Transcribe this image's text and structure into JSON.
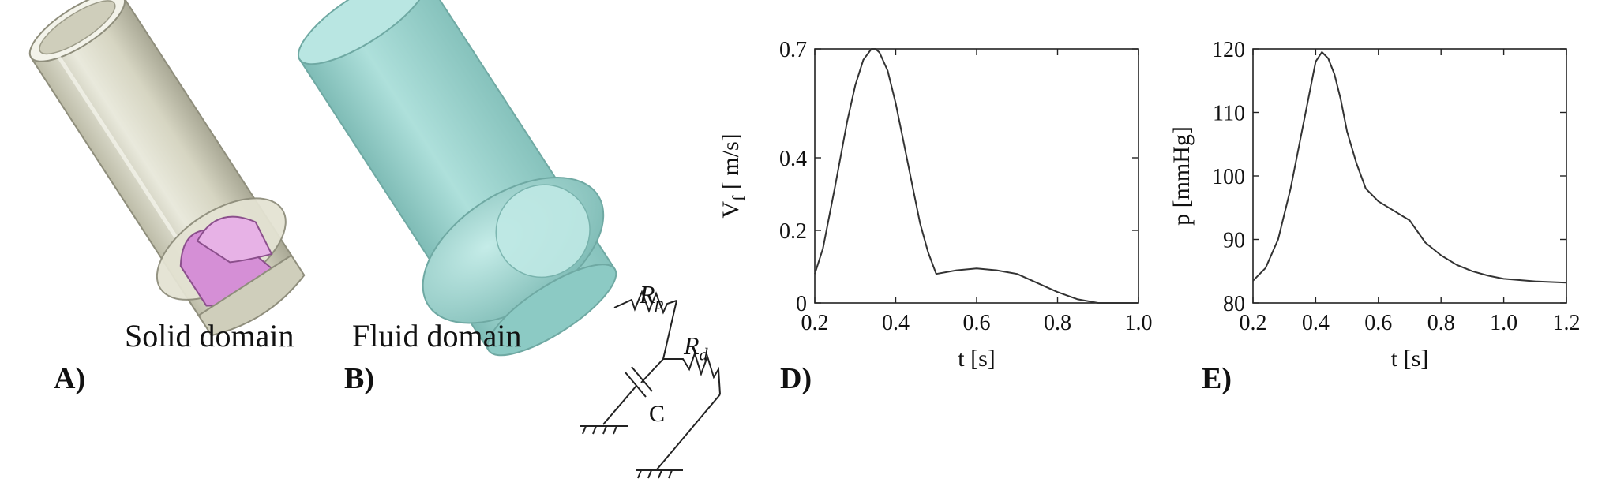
{
  "panels": {
    "A": {
      "letter": "A)",
      "caption": "Solid domain"
    },
    "B": {
      "letter": "B)",
      "caption": "Fluid domain",
      "circuit": {
        "rp_main": "R",
        "rp_sub": "p",
        "rd_main": "R",
        "rd_sub": "d",
        "c_label": "C"
      }
    },
    "D": {
      "letter": "D)"
    },
    "E": {
      "letter": "E)"
    }
  },
  "colors": {
    "solid_wall": "#dcdccb",
    "leaflet": "#d58fd6",
    "fluid": "#9fd4cf",
    "curve": "#333333"
  },
  "chart_data": [
    {
      "type": "line",
      "xlabel": "t [s]",
      "ylabel_main": "V",
      "ylabel_sub": "f",
      "ylabel_rest": " [ m/s]",
      "xlim": [
        0.2,
        1.0
      ],
      "ylim": [
        0,
        0.7
      ],
      "xticks": [
        0.2,
        0.4,
        0.6,
        0.8,
        1.0
      ],
      "xtick_labels": [
        "0.2",
        "0.4",
        "0.6",
        "0.8",
        "1.0"
      ],
      "yticks": [
        0,
        0.2,
        0.4,
        0.7
      ],
      "ytick_labels": [
        "0",
        "0.2",
        "0.4",
        "0.7"
      ],
      "series": [
        {
          "x": [
            0.2,
            0.22,
            0.25,
            0.28,
            0.3,
            0.32,
            0.34,
            0.35,
            0.36,
            0.38,
            0.4,
            0.42,
            0.44,
            0.46,
            0.48,
            0.5,
            0.55,
            0.6,
            0.65,
            0.7,
            0.75,
            0.8,
            0.85,
            0.9,
            0.95,
            1.0
          ],
          "y": [
            0.08,
            0.15,
            0.32,
            0.5,
            0.6,
            0.67,
            0.7,
            0.7,
            0.69,
            0.64,
            0.55,
            0.44,
            0.33,
            0.22,
            0.14,
            0.08,
            0.09,
            0.095,
            0.09,
            0.08,
            0.055,
            0.03,
            0.01,
            0.0,
            0.0,
            0.0
          ]
        }
      ]
    },
    {
      "type": "line",
      "xlabel": "t [s]",
      "ylabel_main": "p [mmHg]",
      "xlim": [
        0.2,
        1.2
      ],
      "ylim": [
        80,
        120
      ],
      "xticks": [
        0.2,
        0.4,
        0.6,
        0.8,
        1.0,
        1.2
      ],
      "xtick_labels": [
        "0.2",
        "0.4",
        "0.6",
        "0.8",
        "1.0",
        "1.2"
      ],
      "yticks": [
        80,
        90,
        100,
        110,
        120
      ],
      "ytick_labels": [
        "80",
        "90",
        "100",
        "110",
        "120"
      ],
      "series": [
        {
          "x": [
            0.2,
            0.24,
            0.28,
            0.32,
            0.36,
            0.4,
            0.42,
            0.44,
            0.46,
            0.48,
            0.5,
            0.53,
            0.56,
            0.6,
            0.65,
            0.7,
            0.75,
            0.8,
            0.85,
            0.9,
            0.95,
            1.0,
            1.1,
            1.2
          ],
          "y": [
            83.5,
            85.5,
            90,
            98,
            108,
            118,
            119.5,
            118.5,
            116,
            112,
            107,
            102,
            98,
            96,
            94.5,
            93,
            89.5,
            87.5,
            86,
            85,
            84.3,
            83.8,
            83.4,
            83.2
          ]
        }
      ]
    }
  ]
}
